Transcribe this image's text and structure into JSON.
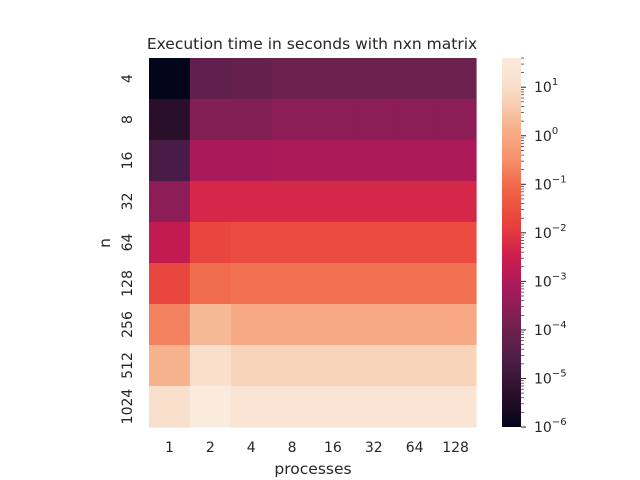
{
  "chart_data": {
    "type": "heatmap",
    "title": "Execution time in seconds with nxn matrix",
    "xlabel": "processes",
    "ylabel": "n",
    "x": [
      "1",
      "2",
      "4",
      "8",
      "16",
      "32",
      "64",
      "128"
    ],
    "y": [
      "4",
      "8",
      "16",
      "32",
      "64",
      "128",
      "256",
      "512",
      "1024"
    ],
    "values": [
      [
        1e-06,
        6e-05,
        7e-05,
        0.0001,
        0.0001,
        0.0001,
        0.0001,
        0.0001
      ],
      [
        5e-06,
        0.0002,
        0.0002,
        0.0003,
        0.0003,
        0.0003,
        0.0003,
        0.0003
      ],
      [
        2e-05,
        0.0008,
        0.0008,
        0.0009,
        0.0009,
        0.0009,
        0.0009,
        0.0009
      ],
      [
        0.0003,
        0.005,
        0.005,
        0.005,
        0.005,
        0.005,
        0.005,
        0.005
      ],
      [
        0.002,
        0.02,
        0.025,
        0.025,
        0.025,
        0.025,
        0.025,
        0.025
      ],
      [
        0.02,
        0.1,
        0.12,
        0.12,
        0.12,
        0.12,
        0.12,
        0.12
      ],
      [
        0.2,
        2,
        1,
        1,
        1,
        1,
        1,
        1
      ],
      [
        1.5,
        12,
        6,
        6,
        6,
        6,
        6,
        6
      ],
      [
        12,
        40,
        20,
        20,
        20,
        20,
        20,
        20
      ]
    ],
    "color_scale": "log",
    "colorbar": {
      "range": [
        1e-06,
        40
      ],
      "ticks": [
        {
          "base": "10",
          "exp": "−6",
          "value": 1e-06
        },
        {
          "base": "10",
          "exp": "−5",
          "value": 1e-05
        },
        {
          "base": "10",
          "exp": "−4",
          "value": 0.0001
        },
        {
          "base": "10",
          "exp": "−3",
          "value": 0.001
        },
        {
          "base": "10",
          "exp": "−2",
          "value": 0.01
        },
        {
          "base": "10",
          "exp": "−1",
          "value": 0.1
        },
        {
          "base": "10",
          "exp": "0",
          "value": 1
        },
        {
          "base": "10",
          "exp": "1",
          "value": 10
        }
      ]
    },
    "colormap": [
      "#03051a",
      "#2a0f2b",
      "#4c1d4b",
      "#71214f",
      "#a11a5b",
      "#cb1b4f",
      "#e83f3f",
      "#f06043",
      "#f5916d",
      "#f6b48f",
      "#f9dcc6",
      "#faebdd"
    ],
    "grid": false,
    "legend": "colorbar-right"
  }
}
